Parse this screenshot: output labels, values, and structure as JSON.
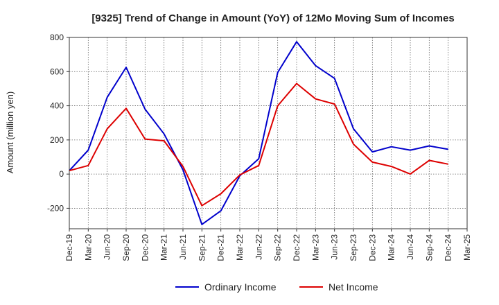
{
  "chart_data": {
    "type": "line",
    "title": "[9325]  Trend of Change in Amount (YoY) of 12Mo Moving Sum of Incomes",
    "xlabel": "",
    "ylabel": "Amount (million yen)",
    "ylim": [
      -320,
      800
    ],
    "yticks": [
      -200,
      0,
      200,
      400,
      600,
      800
    ],
    "categories": [
      "Dec-19",
      "Mar-20",
      "Jun-20",
      "Sep-20",
      "Dec-20",
      "Mar-21",
      "Jun-21",
      "Sep-21",
      "Dec-21",
      "Mar-22",
      "Jun-22",
      "Sep-22",
      "Dec-22",
      "Mar-23",
      "Jun-23",
      "Sep-23",
      "Dec-23",
      "Mar-24",
      "Jun-24",
      "Sep-24",
      "Dec-24",
      "Mar-25"
    ],
    "series": [
      {
        "name": "Ordinary Income",
        "color": "#0000cc",
        "values": [
          20,
          140,
          450,
          625,
          380,
          235,
          25,
          -295,
          -215,
          -10,
          90,
          595,
          775,
          635,
          560,
          265,
          130,
          160,
          140,
          165,
          145,
          null
        ]
      },
      {
        "name": "Net Income",
        "color": "#dd0000",
        "values": [
          20,
          50,
          265,
          385,
          205,
          195,
          45,
          -185,
          -115,
          -5,
          50,
          400,
          530,
          440,
          410,
          175,
          70,
          45,
          0,
          80,
          58,
          null
        ]
      }
    ],
    "legend": {
      "position": "bottom-center"
    },
    "grid": true
  }
}
